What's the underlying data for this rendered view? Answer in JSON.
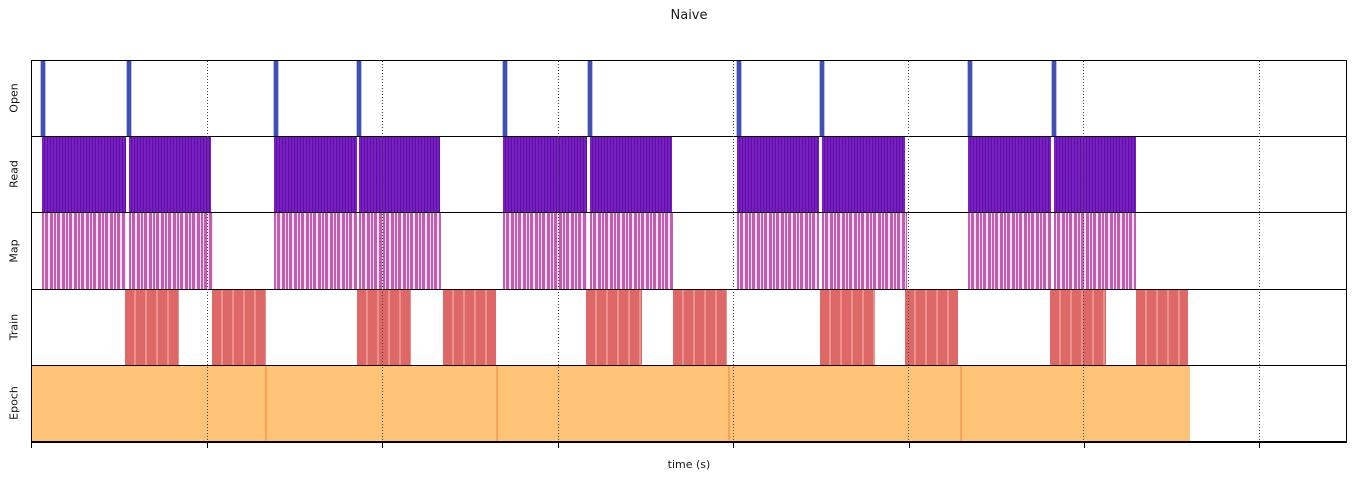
{
  "figure": {
    "title": "Naive",
    "xlabel": "time (s)"
  },
  "chart_data": {
    "type": "timeline",
    "title": "Naive",
    "xlabel": "time (s)",
    "x_axis": {
      "unit": "percent_of_plot_width",
      "tick_labels": [],
      "tick_positions_pct": [
        0,
        13.34,
        26.67,
        40.01,
        53.34,
        66.68,
        80.01,
        93.35
      ],
      "gridline_positions_pct": [
        13.34,
        26.67,
        40.01,
        53.34,
        66.68,
        80.01,
        93.35
      ],
      "grid_style": "dotted"
    },
    "lanes": [
      {
        "key": "open",
        "label": "Open",
        "type": "events",
        "color": "#4050b5",
        "events_pct": [
          0.68,
          7.22,
          18.39,
          24.77,
          35.87,
          42.33,
          53.65,
          59.95,
          71.2,
          77.66
        ]
      },
      {
        "key": "read",
        "label": "Read",
        "type": "bars",
        "color": "#7a1ec6",
        "stripe_color": "#5a0f9e",
        "intervals_pct": [
          [
            0.76,
            7.14
          ],
          [
            7.37,
            13.6
          ],
          [
            18.39,
            24.7
          ],
          [
            24.92,
            31.08
          ],
          [
            35.87,
            42.25
          ],
          [
            42.48,
            48.71
          ],
          [
            53.65,
            59.88
          ],
          [
            60.11,
            66.41
          ],
          [
            71.2,
            77.58
          ],
          [
            77.81,
            84.04
          ]
        ]
      },
      {
        "key": "map",
        "label": "Map",
        "type": "bars",
        "color": "#c45cb0",
        "stripe_color": "#f3e0f2",
        "intervals_pct": [
          [
            0.76,
            7.14
          ],
          [
            7.37,
            13.75
          ],
          [
            18.39,
            24.7
          ],
          [
            24.92,
            31.16
          ],
          [
            35.87,
            42.25
          ],
          [
            42.48,
            48.78
          ],
          [
            53.65,
            59.88
          ],
          [
            60.11,
            66.57
          ],
          [
            71.2,
            77.58
          ],
          [
            77.81,
            84.04
          ]
        ]
      },
      {
        "key": "train",
        "label": "Train",
        "type": "bars",
        "color": "#dd6865",
        "stripe_color": "#e9918e",
        "intervals_pct": [
          [
            7.07,
            11.17
          ],
          [
            13.68,
            17.78
          ],
          [
            24.77,
            28.88
          ],
          [
            31.31,
            35.33
          ],
          [
            42.17,
            46.43
          ],
          [
            48.78,
            52.89
          ],
          [
            59.95,
            64.13
          ],
          [
            66.41,
            70.44
          ],
          [
            77.51,
            81.76
          ],
          [
            84.04,
            87.99
          ]
        ]
      },
      {
        "key": "epoch",
        "label": "Epoch",
        "type": "bars",
        "color": "#fec377",
        "separator_color": "#f9a35a",
        "intervals_pct": [
          [
            0.0,
            17.7
          ],
          [
            17.7,
            35.33
          ],
          [
            35.33,
            52.96
          ],
          [
            52.96,
            70.59
          ],
          [
            70.59,
            88.15
          ]
        ]
      }
    ]
  }
}
